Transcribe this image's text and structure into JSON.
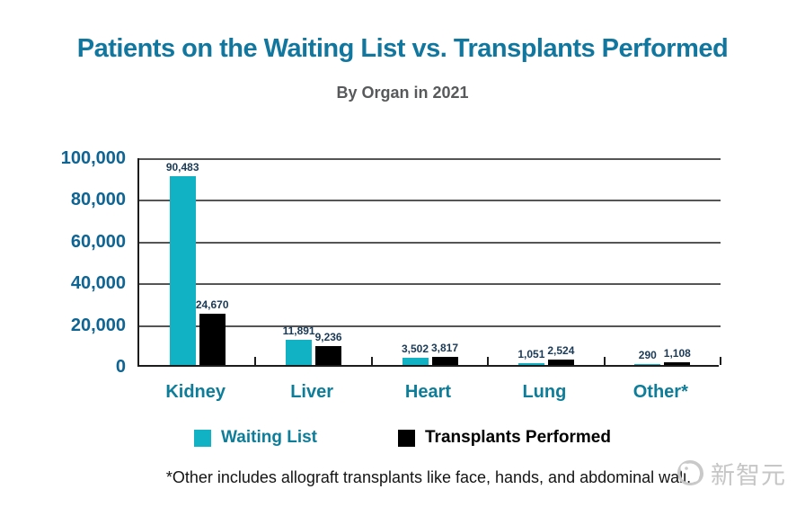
{
  "header": {
    "title": "Patients on the Waiting List vs. Transplants Performed",
    "subtitle": "By Organ in 2021"
  },
  "chart_data": {
    "type": "bar",
    "title": "Patients on the Waiting List vs. Transplants Performed",
    "subtitle": "By Organ in 2021",
    "categories": [
      "Kidney",
      "Liver",
      "Heart",
      "Lung",
      "Other*"
    ],
    "series": [
      {
        "name": "Waiting List",
        "color": "#10b2c4",
        "values": [
          90483,
          11891,
          3502,
          1051,
          290
        ],
        "labels": [
          "90,483",
          "11,891",
          "3,502",
          "1,051",
          "290"
        ]
      },
      {
        "name": "Transplants Performed",
        "color": "#000000",
        "values": [
          24670,
          9236,
          3817,
          2524,
          1108
        ],
        "labels": [
          "24,670",
          "9,236",
          "3,817",
          "2,524",
          "1,108"
        ]
      }
    ],
    "ylim": [
      0,
      100000
    ],
    "yticks": [
      {
        "value": 100000,
        "label": "100,000"
      },
      {
        "value": 80000,
        "label": "80,000"
      },
      {
        "value": 60000,
        "label": "60,000"
      },
      {
        "value": 40000,
        "label": "40,000"
      },
      {
        "value": 20000,
        "label": "20,000"
      },
      {
        "value": 0,
        "label": "0"
      }
    ],
    "grid": true,
    "legend_position": "bottom"
  },
  "legend": {
    "items": [
      {
        "label": "Waiting List",
        "color": "#10b2c4",
        "label_color": "#0d7d99"
      },
      {
        "label": "Transplants Performed",
        "color": "#000000",
        "label_color": "#000000"
      }
    ]
  },
  "footnote": "*Other includes allograft transplants like face, hands, and abdominal wall.",
  "watermark": {
    "text": "新智元"
  },
  "colors": {
    "title": "#11779f",
    "subtitle": "#58595b",
    "y_axis_labels": "#0e6493",
    "category_labels": "#0d7d99",
    "data_labels": "#1b3a56",
    "gridline": "#555555",
    "axis_line": "#1c1c1c",
    "bar_waiting_list": "#10b2c4",
    "bar_transplants": "#000000",
    "watermark": "#c6c6c6"
  }
}
